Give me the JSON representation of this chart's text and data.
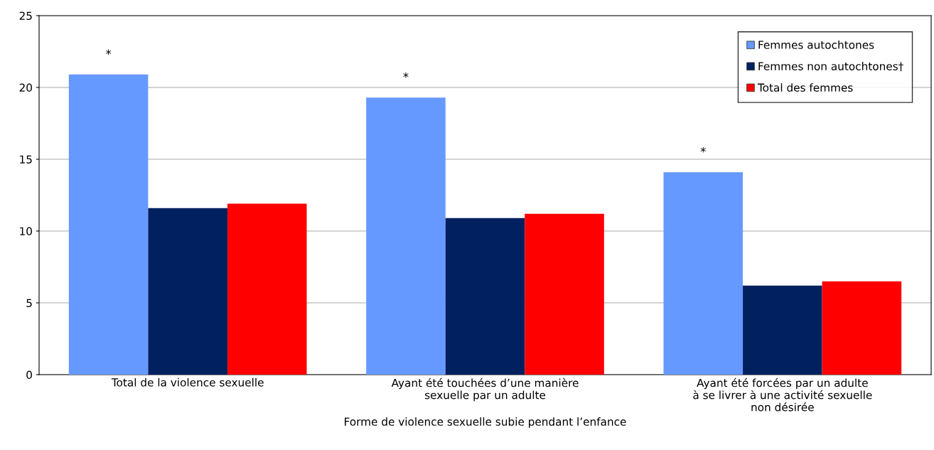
{
  "chart_data": {
    "type": "bar",
    "xlabel": "Forme de violence sexuelle subie pendant l’enfance",
    "categories": [
      "Total de la violence sexuelle",
      "Ayant été touchées d’une manière\nsexuelle par un adulte",
      "Ayant été forcées par un adulte\nà se livrer à une activité sexuelle\nnon désirée"
    ],
    "series": [
      {
        "name": "Femmes autochtones",
        "color": "#6699ff",
        "values": [
          20.9,
          19.3,
          14.1
        ],
        "value_labels": [
          "*",
          "*",
          "*"
        ]
      },
      {
        "name": "Femmes non autochtones†",
        "color": "#002060",
        "values": [
          11.6,
          10.9,
          6.2
        ]
      },
      {
        "name": "Total des femmes",
        "color": "#ff0000",
        "values": [
          11.9,
          11.2,
          6.5
        ]
      }
    ],
    "ylim": [
      0,
      25
    ],
    "yticks": [
      0,
      5,
      10,
      15,
      20,
      25
    ],
    "grid": "y",
    "legend": "top right"
  }
}
